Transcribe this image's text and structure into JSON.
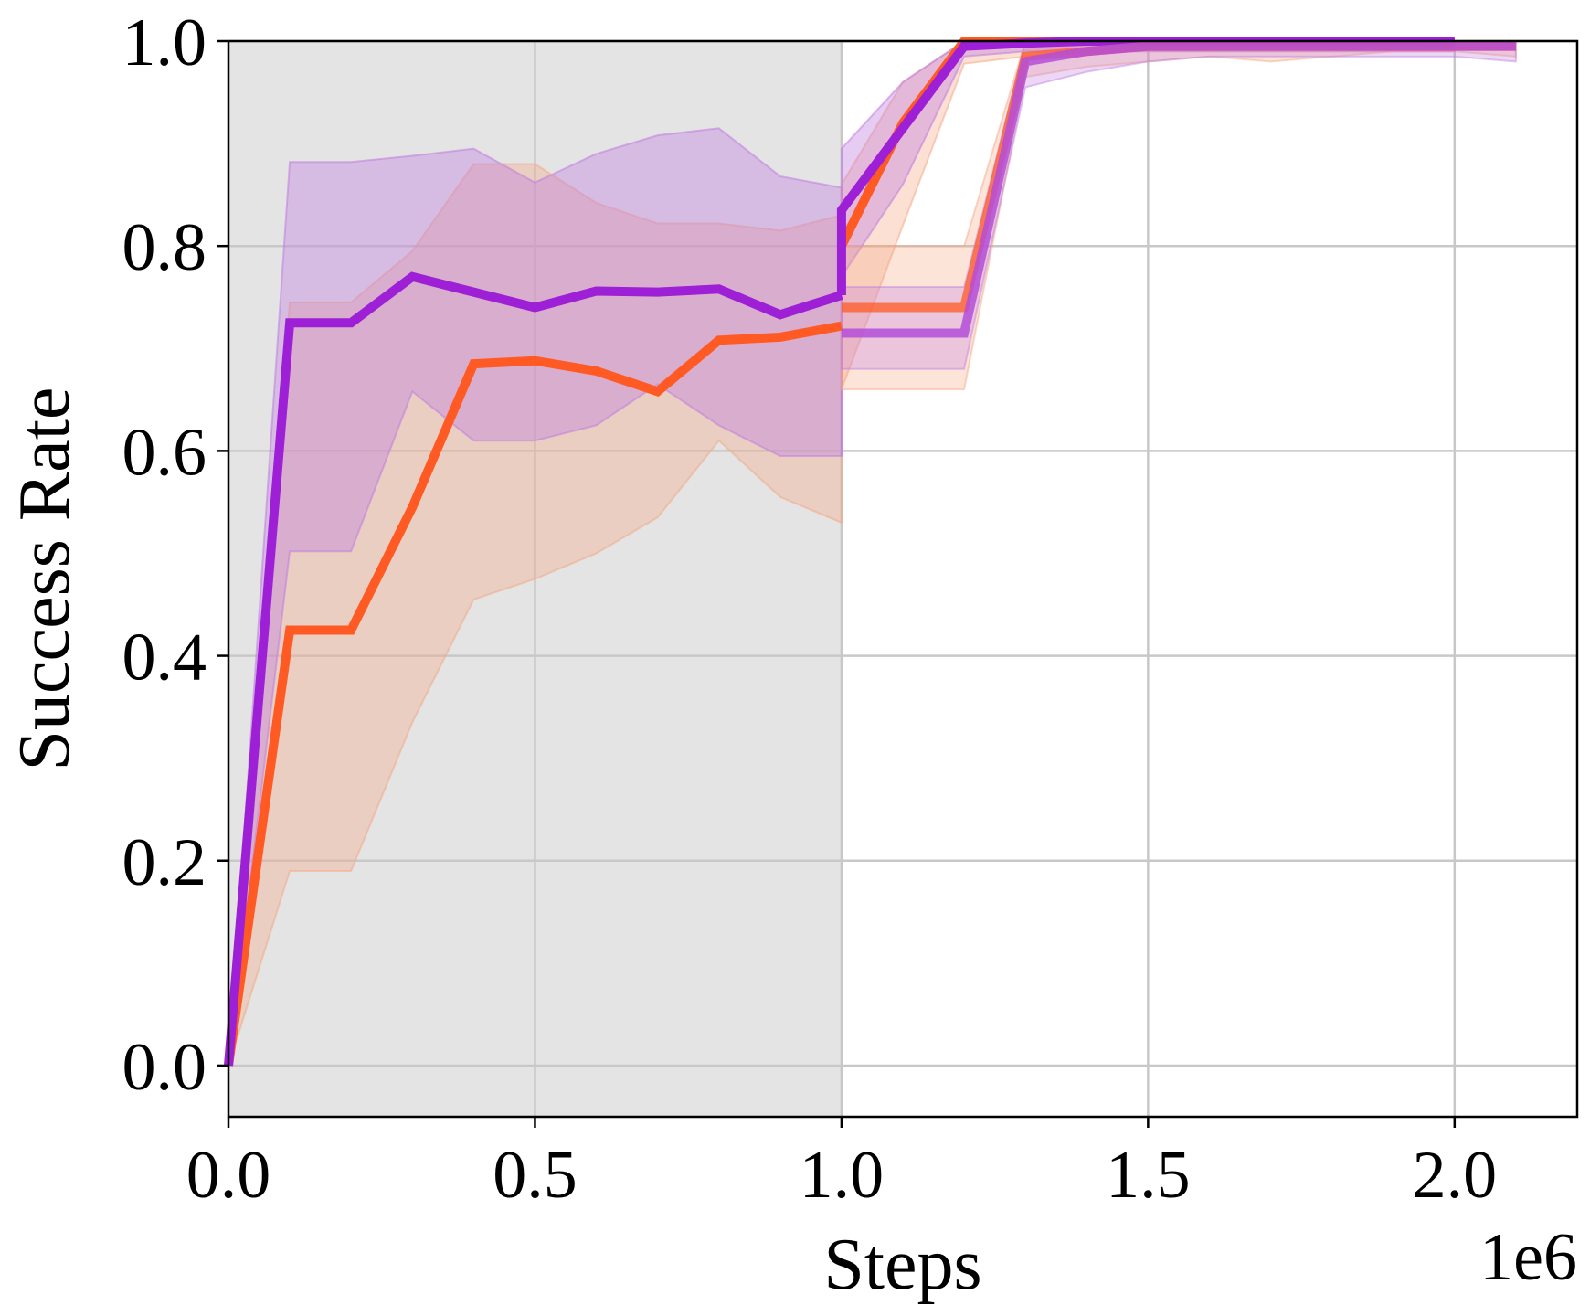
{
  "chart_data": {
    "type": "line",
    "title": "",
    "xlabel": "Steps",
    "ylabel": "Success Rate",
    "x_offset_label": "1e6",
    "xlim": [
      0.0,
      2.2
    ],
    "ylim": [
      -0.05,
      1.0
    ],
    "xticks": [
      0.0,
      0.5,
      1.0,
      1.5,
      2.0
    ],
    "xtick_labels": [
      "0.0",
      "0.5",
      "1.0",
      "1.5",
      "2.0"
    ],
    "yticks": [
      0.0,
      0.2,
      0.4,
      0.6,
      0.8,
      1.0
    ],
    "ytick_labels": [
      "0.0",
      "0.2",
      "0.4",
      "0.6",
      "0.8",
      "1.0"
    ],
    "grid": true,
    "legend": "none",
    "shaded_region": {
      "x_start": 0.0,
      "x_end": 1.0,
      "color": "#e4e4e4"
    },
    "series": [
      {
        "color": "#ff5a24",
        "band_color": "#f4a582",
        "line_alpha": 1.0,
        "band_alpha": 0.35,
        "x": [
          0.0,
          0.1,
          0.2,
          0.3,
          0.4,
          0.5,
          0.6,
          0.7,
          0.8,
          0.9,
          1.0
        ],
        "y": [
          0.0,
          0.425,
          0.425,
          0.545,
          0.685,
          0.688,
          0.678,
          0.658,
          0.708,
          0.711,
          0.722
        ],
        "lower": [
          0.0,
          0.19,
          0.19,
          0.335,
          0.455,
          0.475,
          0.5,
          0.535,
          0.61,
          0.555,
          0.53
        ],
        "upper": [
          0.0,
          0.745,
          0.745,
          0.795,
          0.88,
          0.88,
          0.842,
          0.822,
          0.822,
          0.815,
          0.83
        ]
      },
      {
        "color": "#9d1fd6",
        "band_color": "#c07ee0",
        "line_alpha": 1.0,
        "band_alpha": 0.4,
        "x": [
          0.0,
          0.1,
          0.2,
          0.3,
          0.4,
          0.5,
          0.6,
          0.7,
          0.8,
          0.9,
          1.0
        ],
        "y": [
          0.0,
          0.725,
          0.725,
          0.77,
          0.755,
          0.74,
          0.756,
          0.755,
          0.758,
          0.733,
          0.752
        ],
        "lower": [
          0.0,
          0.502,
          0.502,
          0.658,
          0.61,
          0.61,
          0.625,
          0.665,
          0.625,
          0.595,
          0.595
        ],
        "upper": [
          0.0,
          0.882,
          0.882,
          0.888,
          0.895,
          0.862,
          0.89,
          0.908,
          0.915,
          0.868,
          0.857
        ]
      },
      {
        "color": "#ff5a24",
        "band_color": "#f4a582",
        "line_alpha": 1.0,
        "band_alpha": 0.35,
        "x": [
          1.0,
          1.1,
          1.2,
          1.3,
          1.4,
          1.5,
          1.6,
          1.7,
          1.8,
          1.9,
          2.0
        ],
        "y": [
          0.8,
          0.92,
          1.0,
          1.0,
          1.0,
          1.0,
          1.0,
          1.0,
          1.0,
          1.0,
          0.998
        ],
        "lower": [
          0.66,
          0.82,
          0.978,
          0.985,
          0.99,
          0.99,
          0.99,
          0.99,
          0.99,
          0.99,
          0.99
        ],
        "upper": [
          0.86,
          0.96,
          1.0,
          1.0,
          1.0,
          1.0,
          1.0,
          1.0,
          1.0,
          1.0,
          1.0
        ]
      },
      {
        "color": "#9d1fd6",
        "band_color": "#c07ee0",
        "line_alpha": 1.0,
        "band_alpha": 0.4,
        "x": [
          1.0,
          1.0,
          1.1,
          1.2,
          1.3,
          1.4,
          1.5,
          1.6,
          1.7,
          1.8,
          1.9,
          2.0
        ],
        "y": [
          0.752,
          0.835,
          0.915,
          0.995,
          0.998,
          1.0,
          1.0,
          1.0,
          1.0,
          1.0,
          1.0,
          1.0
        ],
        "lower": [
          0.595,
          0.77,
          0.86,
          0.985,
          0.99,
          0.99,
          0.99,
          0.99,
          0.99,
          0.99,
          0.99,
          0.99
        ],
        "upper": [
          0.857,
          0.895,
          0.96,
          1.0,
          1.0,
          1.0,
          1.0,
          1.0,
          1.0,
          1.0,
          1.0,
          1.0
        ]
      },
      {
        "color": "#ff5a24",
        "band_color": "#f4a582",
        "line_alpha": 0.75,
        "band_alpha": 0.3,
        "x": [
          1.0,
          1.2,
          1.3,
          1.4,
          1.5,
          1.6,
          1.7,
          1.8,
          1.9,
          2.0,
          2.1
        ],
        "y": [
          0.74,
          0.74,
          0.985,
          0.99,
          0.995,
          0.995,
          0.995,
          0.995,
          0.995,
          0.995,
          0.995
        ],
        "lower": [
          0.66,
          0.66,
          0.965,
          0.975,
          0.98,
          0.985,
          0.98,
          0.985,
          0.99,
          0.99,
          0.985
        ],
        "upper": [
          0.8,
          0.8,
          1.0,
          1.0,
          1.0,
          1.0,
          1.0,
          1.0,
          1.0,
          1.0,
          1.0
        ]
      },
      {
        "color": "#b44ed8",
        "band_color": "#c07ee0",
        "line_alpha": 0.85,
        "band_alpha": 0.3,
        "x": [
          1.0,
          1.2,
          1.3,
          1.4,
          1.5,
          1.6,
          1.7,
          1.8,
          1.9,
          2.0,
          2.1
        ],
        "y": [
          0.715,
          0.715,
          0.98,
          0.99,
          0.995,
          0.995,
          0.995,
          0.995,
          0.995,
          0.995,
          0.995
        ],
        "lower": [
          0.68,
          0.68,
          0.955,
          0.97,
          0.98,
          0.985,
          0.985,
          0.985,
          0.985,
          0.985,
          0.98
        ],
        "upper": [
          0.76,
          0.76,
          1.0,
          1.0,
          1.0,
          1.0,
          1.0,
          1.0,
          1.0,
          1.0,
          1.0
        ]
      }
    ]
  }
}
